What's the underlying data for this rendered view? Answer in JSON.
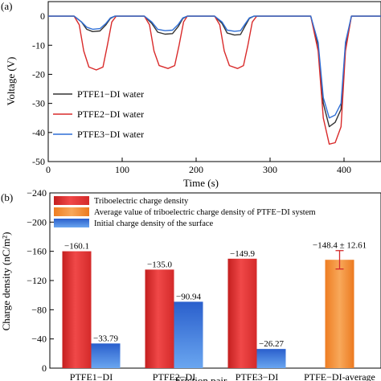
{
  "chart_data": [
    {
      "type": "line",
      "panel_label": "(a)",
      "xlabel": "Time (s)",
      "ylabel": "Voltage (V)",
      "xlim": [
        0,
        450
      ],
      "ylim": [
        -50,
        5
      ],
      "xticks": [
        "0",
        "100",
        "200",
        "300",
        "400"
      ],
      "yticks": [
        "0",
        "-10",
        "-20",
        "-30",
        "-40",
        "-50"
      ],
      "legend_position": "left",
      "series": [
        {
          "name": "PTFE1−DI water",
          "color": "#333333",
          "x": [
            0,
            35,
            45,
            52,
            60,
            70,
            78,
            84,
            90,
            130,
            140,
            148,
            158,
            168,
            176,
            182,
            188,
            225,
            235,
            242,
            252,
            260,
            266,
            272,
            278,
            355,
            365,
            372,
            380,
            388,
            396,
            402,
            410,
            450
          ],
          "y": [
            0,
            0,
            -2,
            -4.5,
            -5.3,
            -5.1,
            -3,
            -0.8,
            0,
            0,
            -2.5,
            -5.5,
            -6.2,
            -6,
            -3.5,
            -0.8,
            0,
            0,
            -2.5,
            -5.8,
            -6.5,
            -6.3,
            -3.5,
            -0.8,
            0,
            0,
            -10,
            -30,
            -38,
            -36.5,
            -32,
            -10,
            0,
            0
          ]
        },
        {
          "name": "PTFE2−DI water",
          "color": "#d92b2b",
          "x": [
            0,
            35,
            42,
            48,
            55,
            65,
            74,
            80,
            86,
            92,
            130,
            137,
            143,
            150,
            162,
            171,
            177,
            183,
            188,
            225,
            232,
            238,
            245,
            256,
            264,
            270,
            276,
            282,
            355,
            365,
            372,
            380,
            388,
            396,
            402,
            410,
            450
          ],
          "y": [
            0,
            0,
            -3,
            -12,
            -17.5,
            -18.5,
            -17.5,
            -10,
            -2,
            0,
            0,
            -3,
            -12,
            -17,
            -18,
            -17,
            -10,
            -2,
            0,
            0,
            -3,
            -12,
            -17,
            -18,
            -17,
            -10,
            -2,
            0,
            0,
            -12,
            -35,
            -44,
            -43.5,
            -38,
            -12,
            0,
            0
          ]
        },
        {
          "name": "PTFE3−DI water",
          "color": "#2f6fd6",
          "x": [
            0,
            35,
            45,
            52,
            60,
            70,
            78,
            84,
            90,
            130,
            140,
            148,
            158,
            168,
            176,
            182,
            188,
            225,
            235,
            242,
            252,
            260,
            266,
            272,
            278,
            355,
            365,
            372,
            380,
            388,
            396,
            402,
            410,
            450
          ],
          "y": [
            0,
            0,
            -2,
            -3.8,
            -4.5,
            -4.3,
            -2.5,
            -0.6,
            0,
            0,
            -2,
            -4.5,
            -5,
            -4.8,
            -2.8,
            -0.6,
            0,
            0,
            -2,
            -4.8,
            -5.2,
            -5,
            -2.8,
            -0.6,
            0,
            0,
            -9,
            -28,
            -35,
            -34,
            -30,
            -9,
            0,
            0
          ]
        }
      ]
    },
    {
      "type": "bar",
      "panel_label": "(b)",
      "xlabel": "Friction pair",
      "ylabel": "Charge density (nC/m²)",
      "ylim": [
        0,
        -240
      ],
      "yticks": [
        "−240",
        "−200",
        "−160",
        "−120",
        "−80",
        "−40",
        "0"
      ],
      "categories": [
        "PTFE1−DI",
        "PTFE2−DI",
        "PTFE3−DI",
        "PTFE−DI-average"
      ],
      "legend_position": "top-left",
      "series": [
        {
          "name": "Triboelectric charge density",
          "color": "#e63b3b",
          "values": [
            -160.1,
            -135.0,
            -149.9,
            null
          ],
          "labels": [
            "−160.1",
            "−135.0",
            "−149.9",
            ""
          ]
        },
        {
          "name": "Average value of triboelectric charge density of PTFE−DI system",
          "color": "#f08a35",
          "values": [
            null,
            null,
            null,
            -148.4
          ],
          "error": 12.61,
          "labels": [
            "",
            "",
            "",
            "−148.4 ± 12.61"
          ]
        },
        {
          "name": "Initial charge density of the surface",
          "color": "#2f6fd6",
          "values": [
            -33.79,
            -90.94,
            -26.27,
            null
          ],
          "labels": [
            "−33.79",
            "−90.94",
            "−26.27",
            ""
          ]
        }
      ]
    }
  ]
}
